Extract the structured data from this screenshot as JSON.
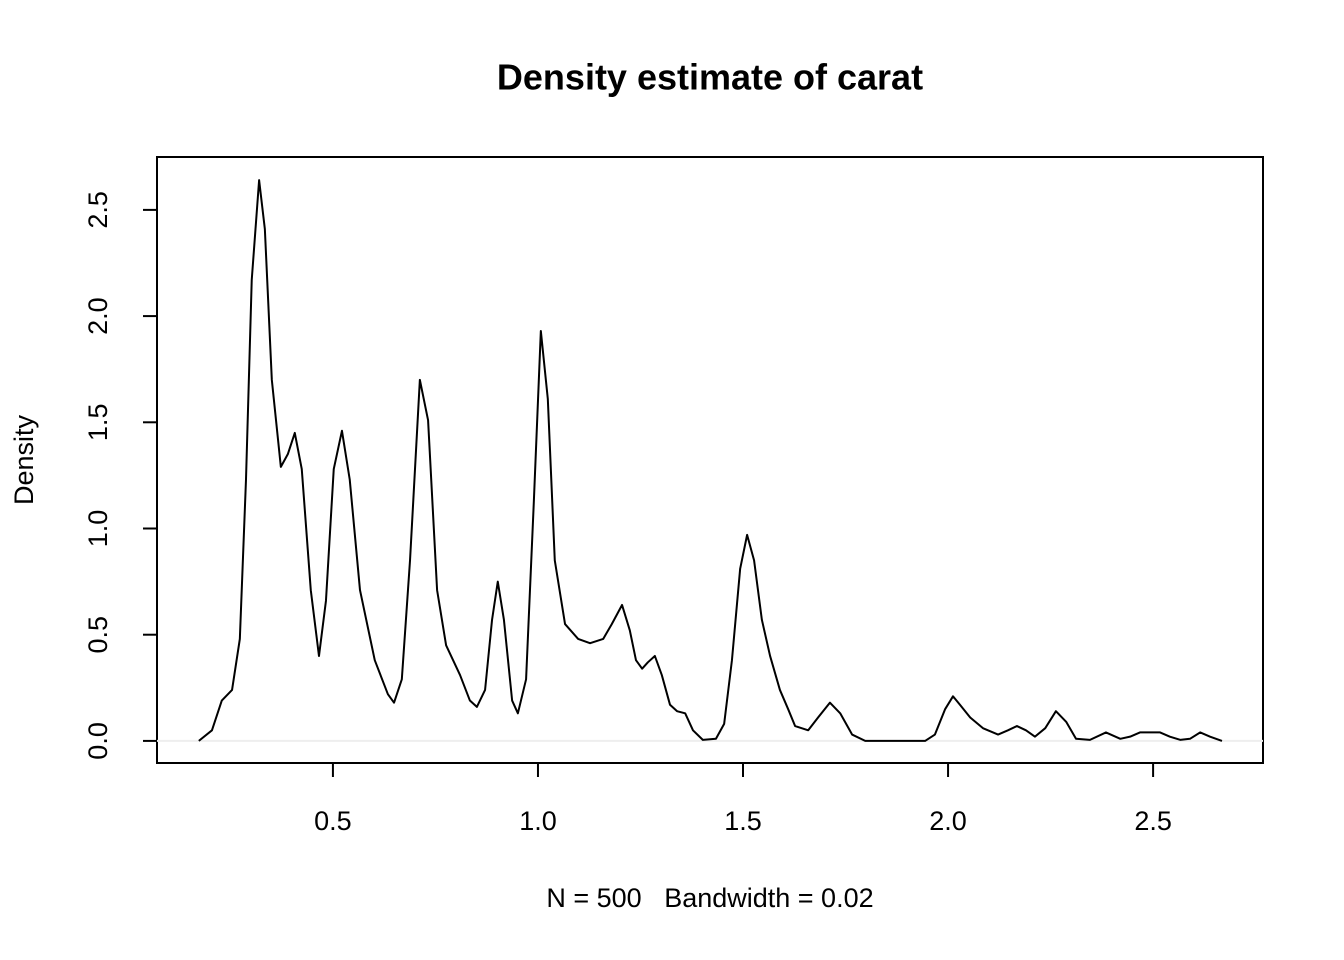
{
  "chart_data": {
    "type": "line",
    "title": "Density estimate of carat",
    "x_label": "N = 500   Bandwidth = 0.02",
    "y_label": "Density",
    "xlim": [
      0.071,
      2.768
    ],
    "ylim": [
      -0.104,
      2.749
    ],
    "xticks": [
      0.5,
      {
        "value": 1,
        "label": "1.0"
      },
      1.5,
      {
        "value": 2,
        "label": "2.0"
      },
      2.5
    ],
    "yticks": [
      {
        "value": 0,
        "label": "0.0"
      },
      0.5,
      {
        "value": 1,
        "label": "1.0"
      },
      1.5,
      {
        "value": 2,
        "label": "2.0"
      },
      2.5
    ],
    "grid": false,
    "color": "#000000",
    "x": [
      0.173,
      0.205,
      0.229,
      0.254,
      0.273,
      0.288,
      0.302,
      0.32,
      0.334,
      0.351,
      0.373,
      0.39,
      0.407,
      0.424,
      0.446,
      0.466,
      0.483,
      0.502,
      0.522,
      0.541,
      0.566,
      0.602,
      0.634,
      0.649,
      0.668,
      0.688,
      0.712,
      0.732,
      0.754,
      0.776,
      0.81,
      0.834,
      0.851,
      0.871,
      0.888,
      0.902,
      0.917,
      0.937,
      0.951,
      0.971,
      0.99,
      1.007,
      1.024,
      1.041,
      1.066,
      1.098,
      1.127,
      1.159,
      1.18,
      1.205,
      1.224,
      1.239,
      1.254,
      1.268,
      1.285,
      1.302,
      1.322,
      1.339,
      1.359,
      1.378,
      1.402,
      1.434,
      1.454,
      1.473,
      1.493,
      1.51,
      1.527,
      1.546,
      1.566,
      1.59,
      1.61,
      1.627,
      1.659,
      1.683,
      1.712,
      1.737,
      1.766,
      1.798,
      1.944,
      1.968,
      1.993,
      2.012,
      2.029,
      2.054,
      2.085,
      2.122,
      2.146,
      2.168,
      2.19,
      2.212,
      2.237,
      2.263,
      2.288,
      2.312,
      2.346,
      2.385,
      2.42,
      2.444,
      2.468,
      2.498,
      2.517,
      2.541,
      2.566,
      2.59,
      2.615,
      2.639,
      2.668
    ],
    "values": [
      0,
      0.05,
      0.19,
      0.24,
      0.48,
      1.23,
      2.17,
      2.64,
      2.41,
      1.7,
      1.29,
      1.35,
      1.45,
      1.28,
      0.71,
      0.4,
      0.66,
      1.28,
      1.46,
      1.23,
      0.71,
      0.38,
      0.22,
      0.18,
      0.29,
      0.85,
      1.7,
      1.51,
      0.71,
      0.45,
      0.31,
      0.19,
      0.16,
      0.24,
      0.57,
      0.75,
      0.57,
      0.19,
      0.13,
      0.29,
      1.13,
      1.93,
      1.61,
      0.85,
      0.55,
      0.48,
      0.46,
      0.48,
      0.55,
      0.64,
      0.52,
      0.38,
      0.34,
      0.37,
      0.4,
      0.31,
      0.17,
      0.14,
      0.13,
      0.05,
      0.005,
      0.01,
      0.08,
      0.38,
      0.81,
      0.97,
      0.85,
      0.57,
      0.4,
      0.24,
      0.15,
      0.07,
      0.05,
      0.11,
      0.18,
      0.13,
      0.03,
      0,
      0,
      0.03,
      0.15,
      0.21,
      0.17,
      0.11,
      0.06,
      0.03,
      0.05,
      0.07,
      0.05,
      0.02,
      0.06,
      0.14,
      0.09,
      0.01,
      0.005,
      0.04,
      0.01,
      0.02,
      0.04,
      0.04,
      0.04,
      0.02,
      0.005,
      0.01,
      0.04,
      0.02,
      0
    ]
  }
}
